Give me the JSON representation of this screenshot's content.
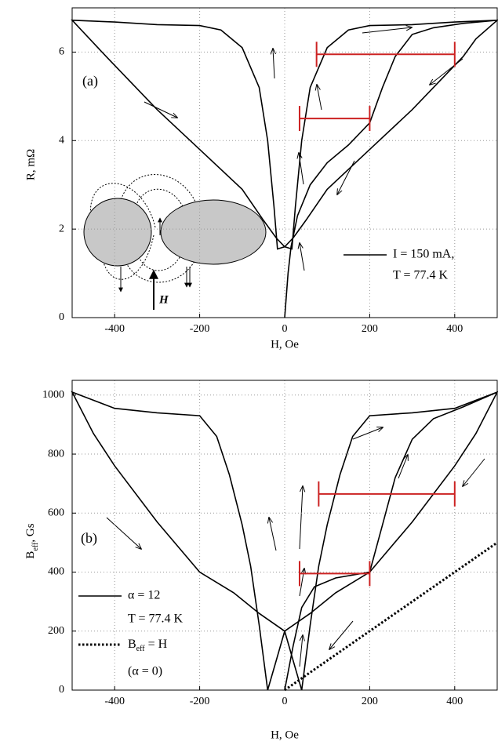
{
  "chart_data": [
    {
      "type": "line",
      "panel_label": "(a)",
      "xlabel": "H, Oe",
      "ylabel": "R, mΩ",
      "inset_label": "H",
      "xlim": [
        -500,
        500
      ],
      "xticks": [
        -400,
        -200,
        0,
        200,
        400
      ],
      "ylim": [
        0,
        7
      ],
      "yticks": [
        0,
        2,
        4,
        6
      ],
      "grid": true,
      "series": [
        {
          "name": "I = 150 mA,",
          "note": "T = 77.4 K",
          "color": "#000000",
          "dash": "solid",
          "x": [
            0,
            8,
            15,
            30,
            60,
            100,
            150,
            200,
            230,
            260,
            300,
            350,
            420,
            500,
            450,
            420,
            300,
            200,
            100,
            50,
            20,
            0,
            -17,
            -25,
            -40,
            -60,
            -100,
            -150,
            -200,
            -300,
            -400,
            -500,
            -420,
            -300,
            -200,
            -100,
            -50,
            -20,
            0,
            17,
            25,
            40,
            60,
            100,
            150,
            200,
            300,
            400,
            500
          ],
          "values": [
            0,
            1.0,
            1.6,
            2.3,
            3.0,
            3.5,
            3.9,
            4.4,
            5.2,
            5.9,
            6.4,
            6.55,
            6.65,
            6.72,
            6.3,
            5.9,
            4.7,
            3.8,
            2.9,
            2.2,
            1.8,
            1.6,
            1.55,
            2.5,
            4.0,
            5.2,
            6.1,
            6.5,
            6.6,
            6.62,
            6.68,
            6.72,
            5.9,
            4.7,
            3.8,
            2.9,
            2.2,
            1.8,
            1.6,
            1.55,
            2.5,
            4.0,
            5.2,
            6.1,
            6.5,
            6.6,
            6.62,
            6.68,
            6.72
          ]
        }
      ],
      "intervals": [
        {
          "x": [
            75,
            400
          ],
          "y": 5.95,
          "color": "#cc2222"
        },
        {
          "x": [
            35,
            200
          ],
          "y": 4.5,
          "color": "#cc2222"
        }
      ]
    },
    {
      "type": "line",
      "panel_label": "(b)",
      "xlabel": "H, Oe",
      "ylabel_parts": [
        "B",
        "eff",
        ", Gs"
      ],
      "xlim": [
        -500,
        500
      ],
      "xticks": [
        -400,
        -200,
        0,
        200,
        400
      ],
      "ylim": [
        0,
        1050
      ],
      "yticks": [
        0,
        200,
        400,
        600,
        800,
        1000
      ],
      "grid": true,
      "series": [
        {
          "name": "α = 12",
          "note": "T = 77.4 K",
          "color": "#000000",
          "dash": "solid",
          "x": [
            0,
            20,
            40,
            70,
            120,
            200,
            230,
            260,
            300,
            350,
            420,
            500,
            450,
            400,
            300,
            200,
            120,
            60,
            0,
            -20,
            -40,
            -60,
            -80,
            -100,
            -130,
            -160,
            -200,
            -300,
            -400,
            -500,
            -450,
            -400,
            -300,
            -200,
            -120,
            -60,
            0,
            20,
            40,
            60,
            80,
            100,
            130,
            160,
            200,
            300,
            400,
            500
          ],
          "values": [
            0,
            150,
            280,
            350,
            380,
            400,
            560,
            720,
            850,
            920,
            960,
            1010,
            870,
            760,
            570,
            400,
            330,
            260,
            200,
            100,
            0,
            220,
            420,
            560,
            730,
            860,
            930,
            940,
            955,
            1010,
            870,
            760,
            570,
            400,
            330,
            260,
            200,
            100,
            0,
            220,
            420,
            560,
            730,
            860,
            930,
            940,
            955,
            1010
          ]
        },
        {
          "name_parts": [
            "B",
            "eff",
            " = H"
          ],
          "note": "(α = 0)",
          "color": "#000000",
          "dash": "dotted",
          "x": [
            0,
            500
          ],
          "values": [
            0,
            500
          ]
        }
      ],
      "intervals": [
        {
          "x": [
            80,
            400
          ],
          "y": 665,
          "color": "#cc2222"
        },
        {
          "x": [
            35,
            200
          ],
          "y": 395,
          "color": "#cc2222"
        }
      ]
    }
  ]
}
